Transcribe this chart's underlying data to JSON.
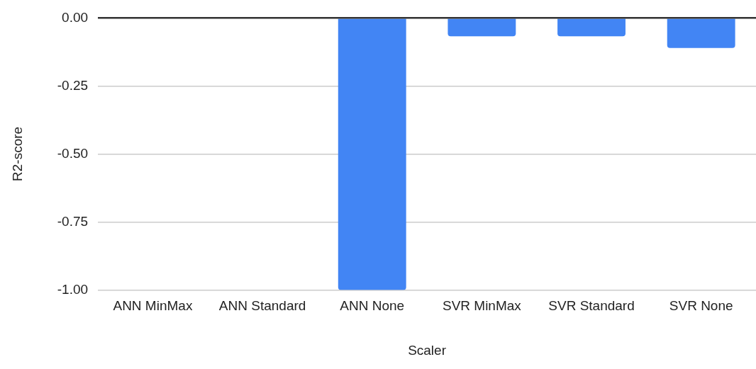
{
  "chart_data": {
    "type": "bar",
    "xlabel": "Scaler",
    "ylabel": "R2-score",
    "categories": [
      "ANN MinMax",
      "ANN Standard",
      "ANN None",
      "SVR MinMax",
      "SVR Standard",
      "SVR None"
    ],
    "values": [
      0,
      0,
      -1.0,
      -0.067,
      -0.067,
      -0.11
    ],
    "color": "#4285f4",
    "ylim": [
      -1,
      0
    ],
    "yticks": [
      {
        "value": -1,
        "label": "-1.00"
      },
      {
        "value": -0.75,
        "label": "-0.75"
      },
      {
        "value": -0.5,
        "label": "-0.50"
      },
      {
        "value": -0.25,
        "label": "-0.25"
      },
      {
        "value": 0,
        "label": "0.00"
      }
    ],
    "grid": "y",
    "legend": false
  }
}
